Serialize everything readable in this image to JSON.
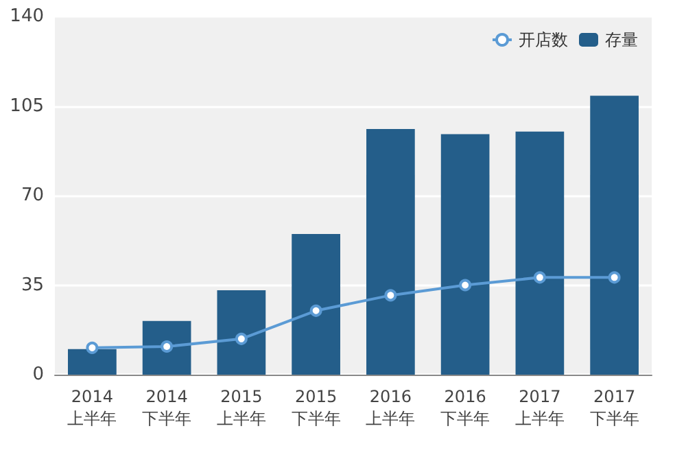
{
  "chart_data": {
    "type": "bar",
    "categories": [
      "2014\n上半年",
      "2014\n下半年",
      "2015\n上半年",
      "2015\n下半年",
      "2016\n上半年",
      "2016\n下半年",
      "2017\n上半年",
      "2017\n下半年"
    ],
    "series": [
      {
        "name": "开店数",
        "type": "line",
        "color": "#5b9bd5",
        "values": [
          10.5,
          11,
          14,
          25,
          31,
          35,
          38,
          38
        ]
      },
      {
        "name": "存量",
        "color": "#245e8a",
        "values": [
          10,
          21,
          33,
          55,
          96,
          94,
          95,
          109
        ]
      }
    ],
    "ylim": [
      0,
      140
    ],
    "yticks": [
      0,
      35,
      70,
      105,
      140
    ],
    "grid": "y",
    "legend": "top right",
    "marker": "circle"
  }
}
